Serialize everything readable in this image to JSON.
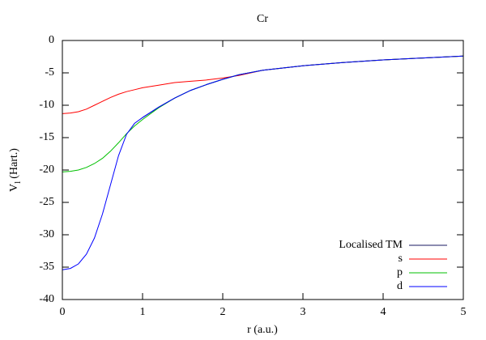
{
  "chart_data": {
    "type": "line",
    "title": "Cr",
    "xlabel": "r (a.u.)",
    "ylabel": "V",
    "ylabel_sub": "l",
    "ylabel_unit": "(Hart.)",
    "x": [
      0,
      0.1,
      0.2,
      0.3,
      0.4,
      0.5,
      0.6,
      0.7,
      0.8,
      0.9,
      1.0,
      1.2,
      1.4,
      1.6,
      1.8,
      2.0,
      2.2,
      2.5,
      3,
      3.5,
      4,
      4.5,
      5
    ],
    "series": [
      {
        "name": "Localised TM",
        "color": "#1a1a60",
        "values": [
          null,
          null,
          null,
          null,
          null,
          null,
          null,
          null,
          null,
          null,
          -11.9,
          -10.3,
          -8.9,
          -7.7,
          -6.8,
          -6.0,
          -5.3,
          -4.6,
          -3.9,
          -3.4,
          -3.0,
          -2.7,
          -2.4
        ]
      },
      {
        "name": "s",
        "color": "#ff0000",
        "values": [
          -11.3,
          -11.2,
          -11.0,
          -10.6,
          -10.0,
          -9.4,
          -8.8,
          -8.3,
          -7.9,
          -7.6,
          -7.3,
          -6.9,
          -6.5,
          -6.3,
          -6.1,
          -5.8,
          -5.4,
          -4.6,
          -3.9,
          -3.4,
          -3.0,
          -2.7,
          -2.4
        ]
      },
      {
        "name": "p",
        "color": "#00c000",
        "values": [
          -20.3,
          -20.2,
          -20.0,
          -19.6,
          -19.0,
          -18.2,
          -17.1,
          -15.8,
          -14.4,
          -13.2,
          -12.2,
          -10.4,
          -8.9,
          -7.7,
          -6.8,
          -6.0,
          -5.3,
          -4.6,
          -3.9,
          -3.4,
          -3.0,
          -2.7,
          -2.4
        ]
      },
      {
        "name": "d",
        "color": "#0000ff",
        "values": [
          -35.4,
          -35.2,
          -34.5,
          -33.0,
          -30.5,
          -26.8,
          -22.3,
          -17.8,
          -14.5,
          -12.8,
          -11.9,
          -10.3,
          -8.9,
          -7.7,
          -6.8,
          -6.0,
          -5.3,
          -4.6,
          -3.9,
          -3.4,
          -3.0,
          -2.7,
          -2.4
        ]
      }
    ],
    "xlim": [
      0,
      5
    ],
    "xticks": [
      0,
      1,
      2,
      3,
      4,
      5
    ],
    "ylim": [
      -40,
      0
    ],
    "yticks": [
      -40,
      -35,
      -30,
      -25,
      -20,
      -15,
      -10,
      -5,
      0
    ],
    "legend": "lower right"
  }
}
